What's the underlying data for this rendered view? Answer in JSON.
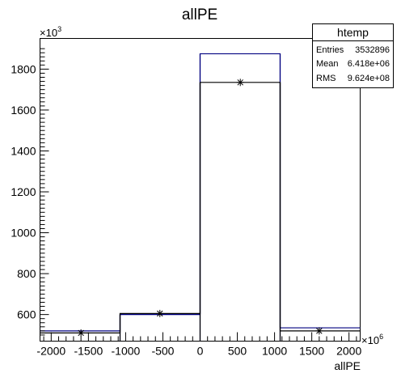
{
  "chart_data": {
    "type": "bar",
    "title": "allPE",
    "xlabel": "allPE",
    "x_multiplier": "×10",
    "x_multiplier_exp": "6",
    "y_multiplier": "×10",
    "y_multiplier_exp": "3",
    "xlim": [
      -2150,
      2150
    ],
    "ylim": [
      470,
      1950
    ],
    "x_ticks": [
      -2000,
      -1500,
      -1000,
      -500,
      0,
      500,
      1000,
      1500,
      2000
    ],
    "x_tick_labels": [
      "-2000",
      "-1500",
      "-1000",
      "-500",
      "0",
      "500",
      "1000",
      "1500",
      "2000"
    ],
    "y_ticks": [
      600,
      800,
      1000,
      1200,
      1400,
      1600,
      1800
    ],
    "y_tick_labels": [
      "600",
      "800",
      "1000",
      "1200",
      "1400",
      "1600",
      "1800"
    ],
    "bin_edges": [
      -2150,
      -1075,
      0,
      1075,
      2150
    ],
    "series": [
      {
        "values": [
          520,
          600,
          1875,
          535
        ],
        "color": "#000080"
      },
      {
        "values": [
          510,
          605,
          1735,
          520
        ],
        "color": "#000000"
      }
    ],
    "markers": [
      {
        "x": -1600,
        "y": 510
      },
      {
        "x": -540,
        "y": 605
      },
      {
        "x": 540,
        "y": 1735
      },
      {
        "x": 1600,
        "y": 520
      }
    ],
    "grid": false,
    "legend_position": "top-right",
    "stats_box": {
      "name": "htemp",
      "rows": [
        {
          "label": "Entries",
          "value": "3532896"
        },
        {
          "label": "Mean",
          "value": "6.418e+06"
        },
        {
          "label": "RMS",
          "value": "9.624e+08"
        }
      ]
    }
  }
}
